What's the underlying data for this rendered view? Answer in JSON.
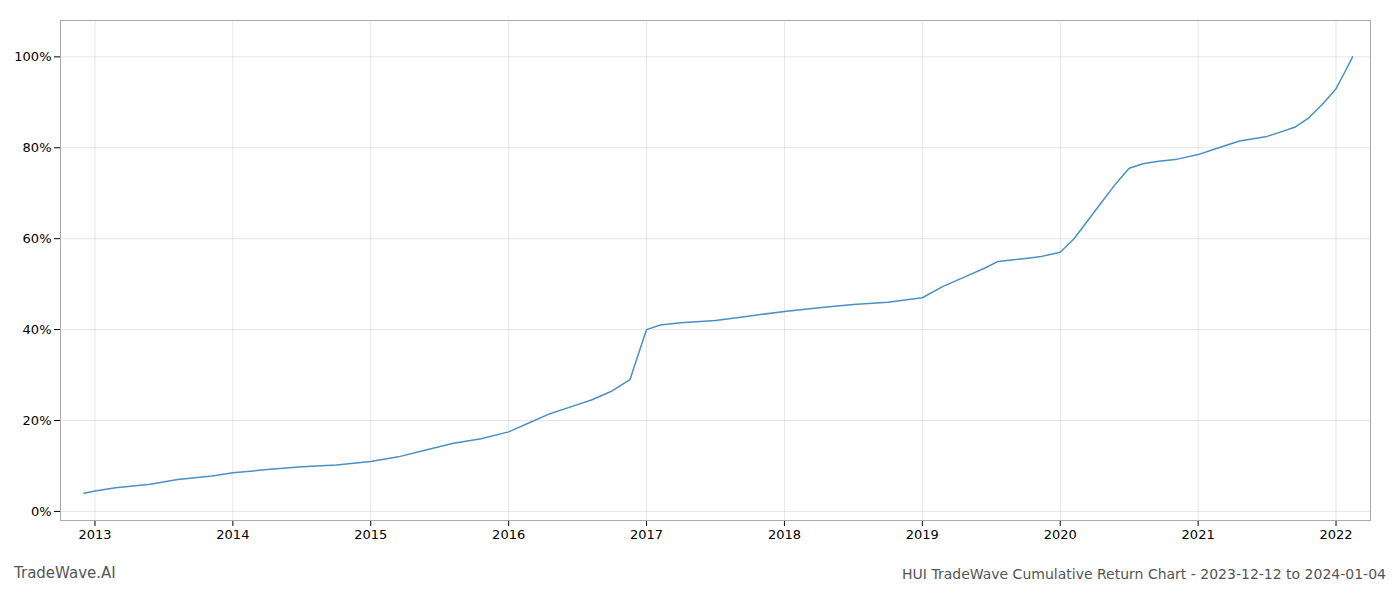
{
  "chart_data": {
    "type": "line",
    "title": "HUI TradeWave Cumulative Return Chart - 2023-12-12 to 2024-01-04",
    "annotations": [
      "TradeWave.AI"
    ],
    "color": "#4a90c4",
    "x": [
      2012.92,
      2013.0,
      2013.15,
      2013.4,
      2013.6,
      2013.85,
      2014.0,
      2014.25,
      2014.5,
      2014.75,
      2015.0,
      2015.2,
      2015.4,
      2015.6,
      2015.8,
      2016.0,
      2016.15,
      2016.3,
      2016.45,
      2016.6,
      2016.75,
      2016.88,
      2017.0,
      2017.1,
      2017.25,
      2017.5,
      2017.75,
      2018.0,
      2018.25,
      2018.5,
      2018.75,
      2019.0,
      2019.15,
      2019.3,
      2019.45,
      2019.55,
      2019.7,
      2019.85,
      2020.0,
      2020.1,
      2020.2,
      2020.3,
      2020.4,
      2020.5,
      2020.6,
      2020.7,
      2020.85,
      2021.0,
      2021.1,
      2021.2,
      2021.3,
      2021.4,
      2021.5,
      2021.6,
      2021.7,
      2021.8,
      2021.9,
      2022.0,
      2022.07,
      2022.12
    ],
    "values": [
      4.0,
      4.5,
      5.2,
      6.0,
      7.0,
      7.8,
      8.5,
      9.2,
      9.8,
      10.2,
      11.0,
      12.0,
      13.5,
      15.0,
      16.0,
      17.5,
      19.5,
      21.5,
      23.0,
      24.5,
      26.5,
      29.0,
      40.0,
      41.0,
      41.5,
      42.0,
      43.0,
      44.0,
      44.8,
      45.5,
      46.0,
      47.0,
      49.5,
      51.5,
      53.5,
      55.0,
      55.5,
      56.0,
      57.0,
      60.0,
      64.0,
      68.0,
      72.0,
      75.5,
      76.5,
      77.0,
      77.5,
      78.5,
      79.5,
      80.5,
      81.5,
      82.0,
      82.5,
      83.5,
      84.5,
      86.5,
      89.5,
      93.0,
      97.0,
      100.0
    ],
    "xlim": [
      2012.75,
      2022.25
    ],
    "xticks": [
      2013,
      2014,
      2015,
      2016,
      2017,
      2018,
      2019,
      2020,
      2021,
      2022
    ],
    "ylim": [
      -2,
      108
    ],
    "yticks": [
      {
        "value": 0,
        "label": "0%"
      },
      {
        "value": 20,
        "label": "20%"
      },
      {
        "value": 40,
        "label": "40%"
      },
      {
        "value": 60,
        "label": "60%"
      },
      {
        "value": 80,
        "label": "80%"
      },
      {
        "value": 100,
        "label": "100%"
      }
    ],
    "grid": true
  }
}
